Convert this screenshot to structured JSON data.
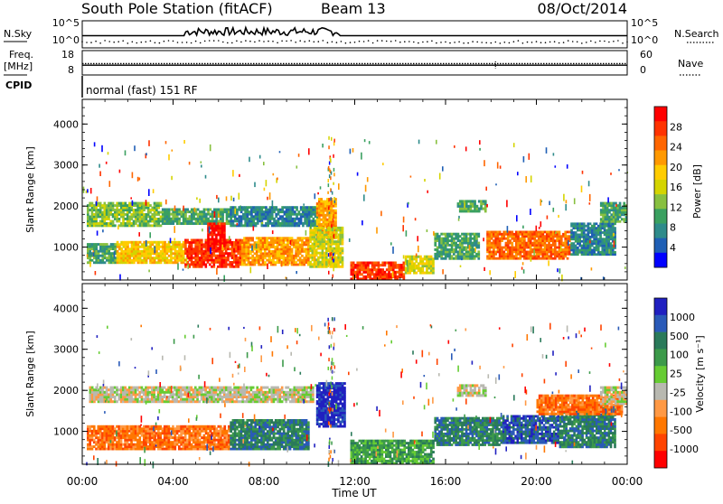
{
  "header": {
    "station": "South Pole Station (fitACF)",
    "beam": "Beam 13",
    "date": "08/Oct/2014"
  },
  "chart_data": [
    {
      "type": "line",
      "panel": "noise",
      "left_label": "N.Sky",
      "right_label": "N.Search",
      "left_ticks": [
        "10^5",
        "10^0"
      ],
      "right_ticks": [
        "10^5",
        "10^0"
      ],
      "x_range_hours": [
        0,
        24
      ],
      "series": [
        {
          "name": "N.Sky",
          "style": "solid",
          "level": 0.45
        },
        {
          "name": "N.Search",
          "style": "dotted",
          "level": 0.22
        }
      ]
    },
    {
      "type": "line",
      "panel": "frequency",
      "left_label_line1": "Freq.",
      "left_label_line2": "[MHz]",
      "right_label": "Nave",
      "left_ticks": [
        "18",
        "8"
      ],
      "right_ticks": [
        "60",
        "0"
      ],
      "ylim_left": [
        8,
        18
      ],
      "ylim_right": [
        0,
        60
      ],
      "series": [
        {
          "name": "Freq.",
          "style": "solid",
          "value": 12.0
        },
        {
          "name": "Nave",
          "style": "dotted",
          "value": 28
        }
      ]
    },
    {
      "type": "table",
      "panel": "cpid",
      "label": "CPID",
      "text": "normal (fast) 151 RF"
    },
    {
      "type": "heatmap",
      "panel": "power",
      "ylabel": "Slant Range [km]",
      "ylim": [
        200,
        4600
      ],
      "yticks": [
        "1000",
        "2000",
        "3000",
        "4000"
      ],
      "colorbar_label": "Power [dB]",
      "colorbar_ticks": [
        "28",
        "24",
        "20",
        "16",
        "12",
        "8",
        "4"
      ],
      "colors": [
        "#ff0000",
        "#ff3300",
        "#ff6600",
        "#ff9900",
        "#ffcc00",
        "#d4d400",
        "#88c040",
        "#3aa060",
        "#2e8b8b",
        "#1f5fb5",
        "#0000ff"
      ],
      "regions": [
        {
          "x0": 0.2,
          "x1": 3.5,
          "y0": 1500,
          "y1": 2100,
          "v": 6
        },
        {
          "x0": 3.5,
          "x1": 6.5,
          "y0": 1550,
          "y1": 1950,
          "v": 7
        },
        {
          "x0": 6.5,
          "x1": 10.4,
          "y0": 1500,
          "y1": 2000,
          "v": 8
        },
        {
          "x0": 10.3,
          "x1": 11.2,
          "y0": 1200,
          "y1": 2200,
          "v": 3
        },
        {
          "x0": 0.2,
          "x1": 1.5,
          "y0": 600,
          "y1": 1100,
          "v": 7
        },
        {
          "x0": 1.5,
          "x1": 4.5,
          "y0": 600,
          "y1": 1150,
          "v": 4
        },
        {
          "x0": 4.5,
          "x1": 7.0,
          "y0": 500,
          "y1": 1200,
          "v": 1
        },
        {
          "x0": 5.5,
          "x1": 6.3,
          "y0": 900,
          "y1": 1600,
          "v": 0
        },
        {
          "x0": 7.0,
          "x1": 10.0,
          "y0": 550,
          "y1": 1250,
          "v": 3
        },
        {
          "x0": 10.0,
          "x1": 11.5,
          "y0": 500,
          "y1": 1500,
          "v": 5
        },
        {
          "x0": 11.8,
          "x1": 14.2,
          "y0": 200,
          "y1": 650,
          "v": 1
        },
        {
          "x0": 14.2,
          "x1": 15.5,
          "y0": 350,
          "y1": 800,
          "v": 5
        },
        {
          "x0": 15.5,
          "x1": 17.5,
          "y0": 700,
          "y1": 1350,
          "v": 7
        },
        {
          "x0": 17.8,
          "x1": 21.5,
          "y0": 700,
          "y1": 1400,
          "v": 2
        },
        {
          "x0": 21.5,
          "x1": 23.5,
          "y0": 800,
          "y1": 1600,
          "v": 8
        },
        {
          "x0": 16.5,
          "x1": 17.8,
          "y0": 1850,
          "y1": 2150,
          "v": 7
        },
        {
          "x0": 22.8,
          "x1": 24.0,
          "y0": 1600,
          "y1": 2100,
          "v": 7
        }
      ]
    },
    {
      "type": "heatmap",
      "panel": "velocity",
      "ylabel": "Slant Range [km]",
      "ylim": [
        200,
        4600
      ],
      "yticks": [
        "1000",
        "2000",
        "3000",
        "4000"
      ],
      "xticks": [
        "00:00",
        "04:00",
        "08:00",
        "12:00",
        "16:00",
        "20:00",
        "00:00"
      ],
      "xlabel": "Time UT",
      "colorbar_label": "Velocity [m s⁻¹]",
      "colorbar_ticks": [
        "1000",
        "500",
        "100",
        "25",
        "-25",
        "-100",
        "-500",
        "-1000"
      ],
      "colors": [
        "#2020c0",
        "#2a5ab8",
        "#2a7a5a",
        "#3c9a4a",
        "#66cc33",
        "#b8b8b0",
        "#ff9944",
        "#ff7700",
        "#ff4400",
        "#ff0000"
      ],
      "regions": [
        {
          "x0": 0.3,
          "x1": 10.2,
          "y0": 1700,
          "y1": 2100,
          "v": 5
        },
        {
          "x0": 0.2,
          "x1": 6.5,
          "y0": 550,
          "y1": 1150,
          "v": 7
        },
        {
          "x0": 6.5,
          "x1": 10.0,
          "y0": 550,
          "y1": 1300,
          "v": 2
        },
        {
          "x0": 10.3,
          "x1": 11.6,
          "y0": 1100,
          "y1": 2200,
          "v": 0
        },
        {
          "x0": 11.8,
          "x1": 15.5,
          "y0": 200,
          "y1": 800,
          "v": 3
        },
        {
          "x0": 15.5,
          "x1": 18.5,
          "y0": 650,
          "y1": 1350,
          "v": 2
        },
        {
          "x0": 18.5,
          "x1": 21.0,
          "y0": 700,
          "y1": 1400,
          "v": 1
        },
        {
          "x0": 21.0,
          "x1": 23.5,
          "y0": 600,
          "y1": 1600,
          "v": 2
        },
        {
          "x0": 20.0,
          "x1": 23.8,
          "y0": 1400,
          "y1": 1900,
          "v": 7
        },
        {
          "x0": 16.5,
          "x1": 17.8,
          "y0": 1850,
          "y1": 2150,
          "v": 5
        },
        {
          "x0": 22.8,
          "x1": 24.0,
          "y0": 1650,
          "y1": 2100,
          "v": 5
        }
      ]
    }
  ]
}
